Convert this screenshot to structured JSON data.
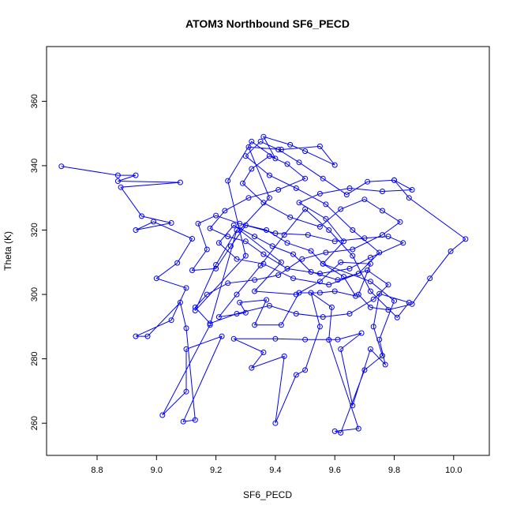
{
  "chart_data": {
    "type": "scatter",
    "title": "ATOM3 Northbound SF6_PECD",
    "xlabel": "SF6_PECD",
    "ylabel": "Theta (K)",
    "xlim": [
      8.63,
      10.12
    ],
    "ylim": [
      250,
      377
    ],
    "xticks": [
      8.8,
      9.0,
      9.2,
      9.4,
      9.6,
      9.8,
      10.0
    ],
    "yticks": [
      260,
      280,
      300,
      320,
      340,
      360
    ],
    "xtick_labels": [
      "8.8",
      "9.0",
      "9.2",
      "9.4",
      "9.6",
      "9.8",
      "10.0"
    ],
    "ytick_labels": [
      "260",
      "280",
      "300",
      "320",
      "340",
      "360"
    ],
    "grid": false,
    "colors": {
      "series": "#0000ff",
      "frame": "#000000"
    },
    "series": [
      {
        "marker": "open-circle",
        "line": "connected",
        "points": [
          [
            8.68,
            339.8
          ],
          [
            8.87,
            337.0
          ],
          [
            8.93,
            337.0
          ],
          [
            8.87,
            335.2
          ],
          [
            9.08,
            334.8
          ],
          [
            8.88,
            333.3
          ],
          [
            8.95,
            324.3
          ],
          [
            9.05,
            322.2
          ],
          [
            8.93,
            320.0
          ],
          [
            8.99,
            322.6
          ],
          [
            9.12,
            317.3
          ],
          [
            9.07,
            309.8
          ],
          [
            9.0,
            305.0
          ],
          [
            9.1,
            302.0
          ],
          [
            9.05,
            292.0
          ],
          [
            8.93,
            287.0
          ],
          [
            8.97,
            287.0
          ],
          [
            9.08,
            297.5
          ],
          [
            9.1,
            289.5
          ],
          [
            9.13,
            261.0
          ],
          [
            9.09,
            260.5
          ],
          [
            9.22,
            287.0
          ],
          [
            9.1,
            283.0
          ],
          [
            9.1,
            269.8
          ],
          [
            9.02,
            262.5
          ],
          [
            9.18,
            290.5
          ],
          [
            9.27,
            320.0
          ],
          [
            9.2,
            309.2
          ],
          [
            9.13,
            295.0
          ],
          [
            9.3,
            312.0
          ],
          [
            9.24,
            335.3
          ],
          [
            9.32,
            347.5
          ],
          [
            9.4,
            342.2
          ],
          [
            9.36,
            349.0
          ],
          [
            9.45,
            346.5
          ],
          [
            9.5,
            344.5
          ],
          [
            9.6,
            340.2
          ],
          [
            9.55,
            346.0
          ],
          [
            9.42,
            345.0
          ],
          [
            9.31,
            345.8
          ],
          [
            9.38,
            330.0
          ],
          [
            9.28,
            320.0
          ],
          [
            9.42,
            310.0
          ],
          [
            9.33,
            301.0
          ],
          [
            9.47,
            300.0
          ],
          [
            9.55,
            304.0
          ],
          [
            9.62,
            310.0
          ],
          [
            9.72,
            309.5
          ],
          [
            9.68,
            300.0
          ],
          [
            9.72,
            296.0
          ],
          [
            9.78,
            295.2
          ],
          [
            9.86,
            297.0
          ],
          [
            9.92,
            305.0
          ],
          [
            9.99,
            313.4
          ],
          [
            10.04,
            317.2
          ],
          [
            9.85,
            330.0
          ],
          [
            9.8,
            335.5
          ],
          [
            9.86,
            332.5
          ],
          [
            9.76,
            332.0
          ],
          [
            9.65,
            333.0
          ],
          [
            9.55,
            331.3
          ],
          [
            9.48,
            328.5
          ],
          [
            9.57,
            323.5
          ],
          [
            9.63,
            316.5
          ],
          [
            9.56,
            309.5
          ],
          [
            9.72,
            304.0
          ],
          [
            9.8,
            298.0
          ],
          [
            9.75,
            286.0
          ],
          [
            9.77,
            278.2
          ],
          [
            9.72,
            283.0
          ],
          [
            9.66,
            265.5
          ],
          [
            9.62,
            283.0
          ],
          [
            9.69,
            288.0
          ],
          [
            9.61,
            286.0
          ],
          [
            9.5,
            286.0
          ],
          [
            9.4,
            286.2
          ],
          [
            9.26,
            286.2
          ],
          [
            9.36,
            282.0
          ],
          [
            9.32,
            277.2
          ],
          [
            9.43,
            280.8
          ],
          [
            9.4,
            260.0
          ],
          [
            9.47,
            275.0
          ],
          [
            9.5,
            276.5
          ],
          [
            9.55,
            290.0
          ],
          [
            9.52,
            300.5
          ],
          [
            9.59,
            296.0
          ],
          [
            9.58,
            285.9
          ],
          [
            9.68,
            258.3
          ],
          [
            9.6,
            257.5
          ],
          [
            9.62,
            257.0
          ],
          [
            9.7,
            276.5
          ],
          [
            9.76,
            281.0
          ],
          [
            9.73,
            290.0
          ],
          [
            9.75,
            300.2
          ],
          [
            9.85,
            297.5
          ],
          [
            9.81,
            292.8
          ],
          [
            9.72,
            301.0
          ],
          [
            9.66,
            312.0
          ],
          [
            9.58,
            320.0
          ],
          [
            9.5,
            326.5
          ],
          [
            9.43,
            318.5
          ],
          [
            9.35,
            309.0
          ],
          [
            9.27,
            300.0
          ],
          [
            9.21,
            293.0
          ],
          [
            9.3,
            294.3
          ],
          [
            9.28,
            297.5
          ],
          [
            9.37,
            298.3
          ],
          [
            9.33,
            290.5
          ],
          [
            9.42,
            290.5
          ],
          [
            9.48,
            300.5
          ],
          [
            9.55,
            300.5
          ],
          [
            9.6,
            301.0
          ],
          [
            9.67,
            299.5
          ],
          [
            9.63,
            305.5
          ],
          [
            9.56,
            309.5
          ],
          [
            9.52,
            313.5
          ],
          [
            9.44,
            316.0
          ],
          [
            9.37,
            320.0
          ],
          [
            9.28,
            322.0
          ],
          [
            9.2,
            324.5
          ],
          [
            9.14,
            322.0
          ],
          [
            9.17,
            314.0
          ],
          [
            9.12,
            307.5
          ],
          [
            9.2,
            308.0
          ],
          [
            9.25,
            315.0
          ],
          [
            9.3,
            321.5
          ],
          [
            9.4,
            319.0
          ],
          [
            9.51,
            318.5
          ],
          [
            9.6,
            316.5
          ],
          [
            9.7,
            317.5
          ],
          [
            9.78,
            318.0
          ],
          [
            9.83,
            316.0
          ],
          [
            9.72,
            311.5
          ],
          [
            9.65,
            308.0
          ],
          [
            9.55,
            306.5
          ],
          [
            9.44,
            308.0
          ],
          [
            9.36,
            312.5
          ],
          [
            9.3,
            316.5
          ],
          [
            9.24,
            318.0
          ],
          [
            9.18,
            320.5
          ],
          [
            9.23,
            326.0
          ],
          [
            9.31,
            330.0
          ],
          [
            9.41,
            332.5
          ],
          [
            9.5,
            336.0
          ],
          [
            9.44,
            340.5
          ],
          [
            9.38,
            343.0
          ],
          [
            9.32,
            339.0
          ],
          [
            9.29,
            334.5
          ],
          [
            9.36,
            328.5
          ],
          [
            9.45,
            324.0
          ],
          [
            9.55,
            321.0
          ],
          [
            9.62,
            326.5
          ],
          [
            9.7,
            329.5
          ],
          [
            9.76,
            326.0
          ],
          [
            9.82,
            322.5
          ],
          [
            9.76,
            318.5
          ],
          [
            9.66,
            314.0
          ],
          [
            9.57,
            313.0
          ],
          [
            9.49,
            311.0
          ],
          [
            9.41,
            306.0
          ],
          [
            9.33,
            304.5
          ],
          [
            9.24,
            303.5
          ],
          [
            9.17,
            300.0
          ],
          [
            9.13,
            296.0
          ],
          [
            9.18,
            291.0
          ],
          [
            9.27,
            294.0
          ],
          [
            9.38,
            296.5
          ],
          [
            9.47,
            294.0
          ],
          [
            9.56,
            293.0
          ],
          [
            9.65,
            294.0
          ],
          [
            9.73,
            298.5
          ],
          [
            9.78,
            303.0
          ],
          [
            9.71,
            307.5
          ],
          [
            9.61,
            304.5
          ],
          [
            9.52,
            307.0
          ],
          [
            9.46,
            312.5
          ],
          [
            9.39,
            315.0
          ],
          [
            9.33,
            318.0
          ],
          [
            9.26,
            321.5
          ],
          [
            9.21,
            316.0
          ],
          [
            9.27,
            311.0
          ],
          [
            9.36,
            309.5
          ],
          [
            9.46,
            305.0
          ],
          [
            9.58,
            303.0
          ],
          [
            9.68,
            306.5
          ],
          [
            9.75,
            313.0
          ],
          [
            9.66,
            320.0
          ],
          [
            9.57,
            328.0
          ],
          [
            9.47,
            333.0
          ],
          [
            9.38,
            337.0
          ],
          [
            9.3,
            343.0
          ],
          [
            9.35,
            347.5
          ],
          [
            9.41,
            345.0
          ],
          [
            9.48,
            341.0
          ],
          [
            9.56,
            336.0
          ],
          [
            9.64,
            331.0
          ],
          [
            9.71,
            335.0
          ],
          [
            9.8,
            335.5
          ]
        ]
      }
    ]
  }
}
